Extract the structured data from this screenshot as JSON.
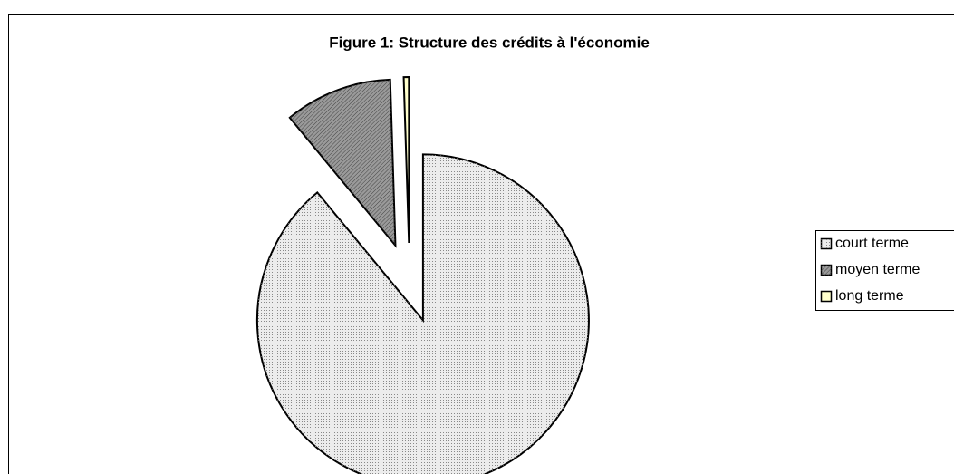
{
  "chart_data": {
    "type": "pie",
    "title": "Figure 1: Structure des crédits à l'économie",
    "categories": [
      "court terme",
      "moyen terme",
      "long terme"
    ],
    "values": [
      89,
      10.5,
      0.5
    ],
    "colors": [
      "#ececec",
      "#9a9a9a",
      "#ffffcc"
    ],
    "legend": "right"
  }
}
